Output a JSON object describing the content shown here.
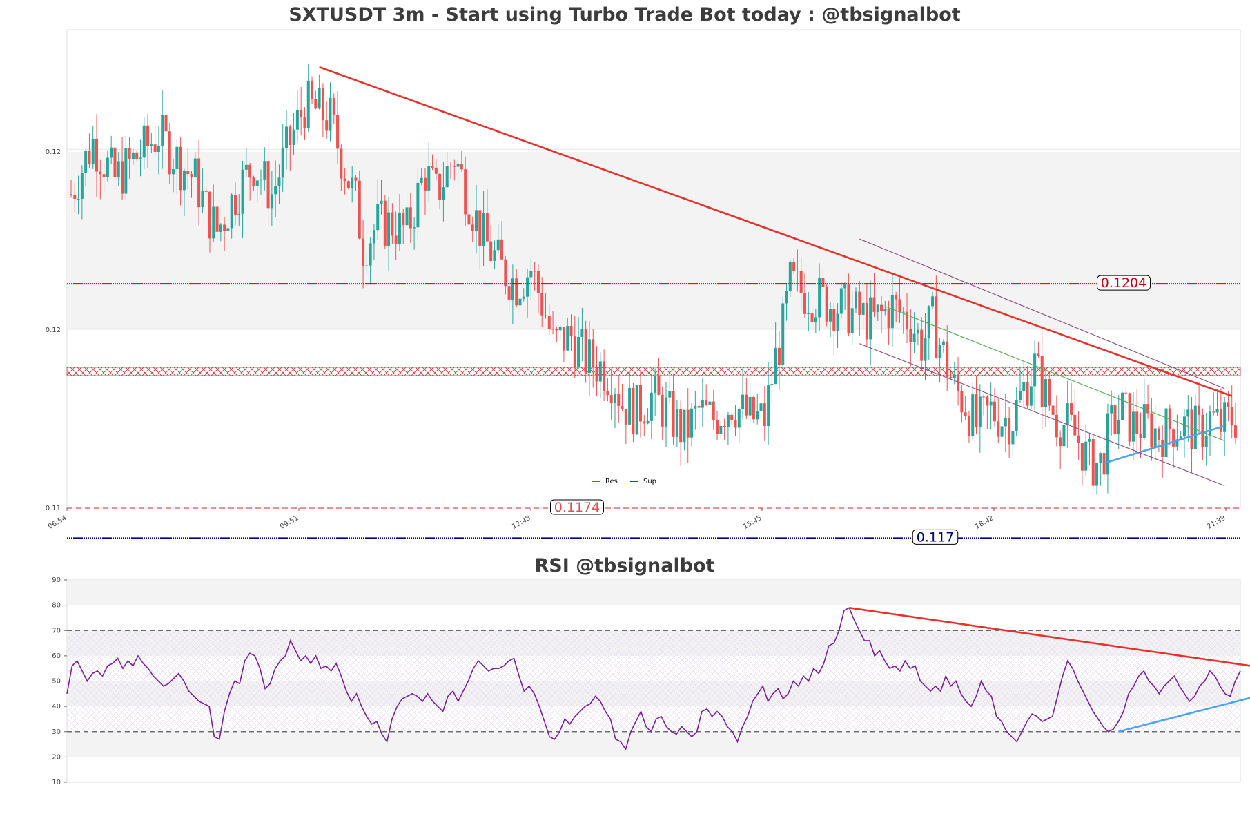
{
  "chart_data": [
    {
      "type": "candlestick",
      "title": "SXTUSDT 3m - Start using Turbo Trade Bot today : @tbsignalbot",
      "xlabel": "",
      "ylabel": "",
      "x_tick_labels": [
        "06:54",
        "09:51",
        "12:48",
        "15:45",
        "18:42",
        "21:39"
      ],
      "y_tick_labels": [
        "0.12",
        "0.12",
        "0.11"
      ],
      "y_tick_values": [
        0.1222,
        0.1198,
        0.1174
      ],
      "ylim": [
        0.1174,
        0.1238
      ],
      "price_path": [
        [
          0,
          0.1216
        ],
        [
          6,
          0.1223
        ],
        [
          12,
          0.1218
        ],
        [
          18,
          0.1221
        ],
        [
          24,
          0.1224
        ],
        [
          30,
          0.122
        ],
        [
          34,
          0.1218
        ],
        [
          37,
          0.1214
        ],
        [
          40,
          0.1211
        ],
        [
          45,
          0.1216
        ],
        [
          50,
          0.122
        ],
        [
          55,
          0.1216
        ],
        [
          60,
          0.1223
        ],
        [
          64,
          0.1228
        ],
        [
          68,
          0.1227
        ],
        [
          71,
          0.1226
        ],
        [
          74,
          0.1221
        ],
        [
          78,
          0.1215
        ],
        [
          80,
          0.1209
        ],
        [
          84,
          0.1212
        ],
        [
          88,
          0.1212
        ],
        [
          92,
          0.1211
        ],
        [
          97,
          0.1219
        ],
        [
          100,
          0.1216
        ],
        [
          105,
          0.1221
        ],
        [
          110,
          0.1214
        ],
        [
          113,
          0.121
        ],
        [
          118,
          0.1206
        ],
        [
          122,
          0.1204
        ],
        [
          126,
          0.1206
        ],
        [
          130,
          0.12
        ],
        [
          132,
          0.1196
        ],
        [
          137,
          0.1197
        ],
        [
          141,
          0.1194
        ],
        [
          145,
          0.1193
        ],
        [
          149,
          0.1191
        ],
        [
          151,
          0.1188
        ],
        [
          155,
          0.1187
        ],
        [
          159,
          0.1189
        ],
        [
          163,
          0.1187
        ],
        [
          168,
          0.1184
        ],
        [
          172,
          0.1187
        ],
        [
          176,
          0.1186
        ],
        [
          181,
          0.1188
        ],
        [
          186,
          0.1186
        ],
        [
          190,
          0.1186
        ],
        [
          193,
          0.1194
        ],
        [
          195,
          0.1198
        ],
        [
          197,
          0.1204
        ],
        [
          200,
          0.1203
        ],
        [
          205,
          0.1202
        ],
        [
          210,
          0.1201
        ],
        [
          215,
          0.12
        ],
        [
          220,
          0.1199
        ],
        [
          225,
          0.1201
        ],
        [
          230,
          0.1199
        ],
        [
          233,
          0.1196
        ],
        [
          236,
          0.1199
        ],
        [
          238,
          0.1196
        ],
        [
          242,
          0.119
        ],
        [
          245,
          0.1188
        ],
        [
          248,
          0.1185
        ],
        [
          252,
          0.1187
        ],
        [
          255,
          0.1186
        ],
        [
          258,
          0.1186
        ],
        [
          261,
          0.119
        ],
        [
          264,
          0.1193
        ],
        [
          267,
          0.1189
        ],
        [
          270,
          0.1186
        ],
        [
          273,
          0.1185
        ],
        [
          276,
          0.1183
        ],
        [
          279,
          0.118
        ],
        [
          282,
          0.118
        ],
        [
          285,
          0.1185
        ],
        [
          288,
          0.1187
        ],
        [
          291,
          0.1185
        ],
        [
          295,
          0.1185
        ],
        [
          298,
          0.1184
        ],
        [
          302,
          0.1185
        ],
        [
          306,
          0.1185
        ],
        [
          309,
          0.1184
        ],
        [
          312,
          0.1186
        ],
        [
          315,
          0.1185
        ],
        [
          318,
          0.1186
        ]
      ],
      "lines": [
        {
          "name": "Res",
          "kind": "horizontal",
          "y": 0.1204,
          "label": "0.1204",
          "color": "#cc0000",
          "style": "dotted"
        },
        {
          "name": "Res",
          "kind": "horizontal",
          "y": 0.1174,
          "label": "0.1174",
          "color": "#e05050",
          "style": "dashed"
        },
        {
          "name": "Sup",
          "kind": "horizontal",
          "y": 0.117,
          "label": "0.117",
          "color": "#00008b",
          "style": "dotted"
        }
      ],
      "trendlines": [
        {
          "kind": "resistance",
          "from": [
            68,
            0.1233
          ],
          "to": [
            318,
            0.1189
          ],
          "color": "#e8312b"
        },
        {
          "kind": "support",
          "from": [
            283,
            0.118
          ],
          "to": [
            316,
            0.1185
          ],
          "color": "#4da3ee"
        },
        {
          "kind": "channel",
          "from": [
            216,
            0.121
          ],
          "to": [
            316,
            0.119
          ],
          "color": "#8b4a7a"
        },
        {
          "kind": "channel",
          "from": [
            216,
            0.1196
          ],
          "to": [
            316,
            0.1177
          ],
          "color": "#8b4a7a"
        },
        {
          "kind": "mid",
          "from": [
            223,
            0.1201
          ],
          "to": [
            316,
            0.1183
          ],
          "color": "#4caf50"
        }
      ],
      "legend": {
        "entries": [
          "Res",
          "Sup"
        ],
        "colors": [
          "#e8312b",
          "#1f3fd9"
        ],
        "placement": "lower center"
      },
      "colors": {
        "up": "#26a69a",
        "down": "#ef5350"
      }
    },
    {
      "type": "line",
      "title": "RSI @tbsignalbot",
      "xlabel": "",
      "ylabel": "",
      "ylim": [
        10,
        90
      ],
      "y_ticks": [
        10,
        20,
        30,
        40,
        50,
        60,
        70,
        80,
        90
      ],
      "reference_lines": [
        30,
        70
      ],
      "series": [
        {
          "values": [
            45,
            56,
            58,
            54,
            50,
            53,
            54,
            52,
            56,
            57,
            59,
            55,
            58,
            56,
            60,
            57,
            55,
            52,
            50,
            48,
            49,
            51,
            53,
            50,
            46,
            44,
            42,
            41,
            40,
            28,
            27,
            38,
            45,
            50,
            49,
            58,
            61,
            60,
            55,
            47,
            49,
            55,
            58,
            60,
            66,
            62,
            58,
            60,
            57,
            60,
            55,
            56,
            54,
            57,
            52,
            46,
            42,
            45,
            40,
            36,
            33,
            34,
            29,
            26,
            35,
            40,
            43,
            44,
            45,
            44,
            42,
            45,
            42,
            40,
            38,
            44,
            46,
            42,
            46,
            50,
            55,
            58,
            56,
            54,
            55,
            55,
            56,
            58,
            59,
            52,
            46,
            48,
            45,
            40,
            34,
            28,
            27,
            30,
            35,
            33,
            36,
            38,
            40,
            41,
            44,
            42,
            38,
            35,
            27,
            26,
            23,
            30,
            34,
            38,
            32,
            30,
            35,
            36,
            32,
            30,
            29,
            32,
            30,
            28,
            30,
            38,
            39,
            36,
            38,
            36,
            32,
            30,
            26,
            32,
            36,
            42,
            45,
            48,
            42,
            45,
            47,
            43,
            45,
            50,
            48,
            52,
            50,
            55,
            53,
            57,
            64,
            65,
            70,
            78,
            79,
            74,
            70,
            66,
            66,
            60,
            62,
            58,
            55,
            56,
            54,
            58,
            55,
            56,
            50,
            48,
            46,
            48,
            46,
            52,
            48,
            50,
            45,
            42,
            40,
            44,
            50,
            46,
            44,
            36,
            34,
            30,
            28,
            26,
            30,
            34,
            37,
            36,
            34,
            35,
            36,
            44,
            52,
            58,
            55,
            50,
            46,
            42,
            38,
            35,
            32,
            30,
            31,
            34,
            38,
            45,
            48,
            52,
            54,
            50,
            48,
            45,
            48,
            50,
            52,
            48,
            45,
            42,
            44,
            48,
            50,
            54,
            52,
            48,
            45,
            44,
            50,
            54
          ]
        }
      ],
      "trendlines": [
        {
          "kind": "resistance",
          "from": [
            154,
            79
          ],
          "to": [
            240,
            54
          ],
          "color": "#e8312b"
        },
        {
          "kind": "support",
          "from": [
            207,
            30
          ],
          "to": [
            240,
            47
          ],
          "color": "#4da3ee"
        }
      ],
      "line_color": "#7b1fa2"
    }
  ]
}
